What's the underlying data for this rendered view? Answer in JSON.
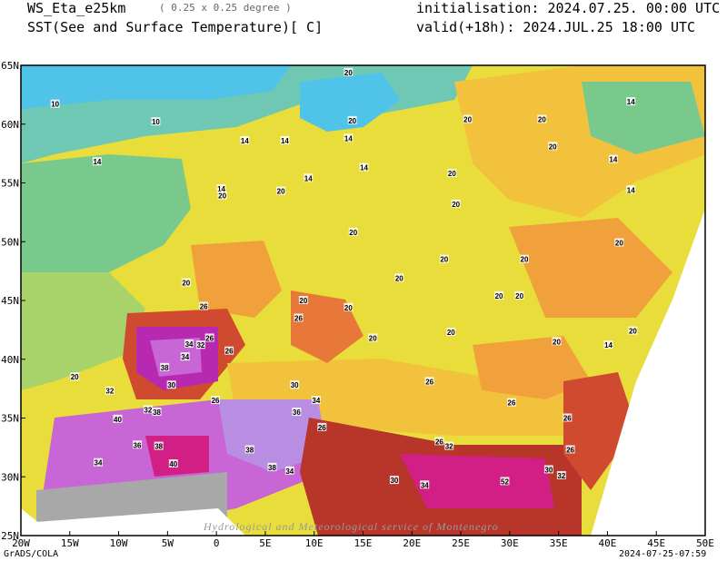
{
  "header": {
    "model": "WS_Eta_e25km",
    "resolution": "( 0.25 x 0.25 degree )",
    "field": "SST(See and Surface Temperature)[ C]",
    "init": "initialisation: 2024.07.25. 00:00 UTC",
    "valid": "valid(+18h): 2024.JUL.25 18:00 UTC"
  },
  "axes": {
    "x_ticks": [
      "20W",
      "15W",
      "10W",
      "5W",
      "0",
      "5E",
      "10E",
      "15E",
      "20E",
      "25E",
      "30E",
      "35E",
      "40E",
      "45E",
      "50E"
    ],
    "y_ticks": [
      "65N",
      "60N",
      "55N",
      "50N",
      "45N",
      "40N",
      "35N",
      "30N",
      "25N"
    ]
  },
  "contour_labels": [
    {
      "text": "10",
      "lon": -16.5,
      "lat": 61.7
    },
    {
      "text": "10",
      "lon": -6.2,
      "lat": 60.2
    },
    {
      "text": "20",
      "lon": 13.5,
      "lat": 64.4
    },
    {
      "text": "20",
      "lon": 13.9,
      "lat": 60.3
    },
    {
      "text": "20",
      "lon": 25.7,
      "lat": 60.4
    },
    {
      "text": "20",
      "lon": 33.3,
      "lat": 60.4
    },
    {
      "text": "14",
      "lon": 42.4,
      "lat": 61.9
    },
    {
      "text": "14",
      "lon": -12.2,
      "lat": 56.8
    },
    {
      "text": "14",
      "lon": 2.9,
      "lat": 58.6
    },
    {
      "text": "14",
      "lon": 7.0,
      "lat": 58.6
    },
    {
      "text": "14",
      "lon": 13.5,
      "lat": 58.8
    },
    {
      "text": "14",
      "lon": 15.1,
      "lat": 56.3
    },
    {
      "text": "14",
      "lon": 9.4,
      "lat": 55.4
    },
    {
      "text": "14",
      "lon": 0.5,
      "lat": 54.5
    },
    {
      "text": "14",
      "lon": 40.6,
      "lat": 57.0
    },
    {
      "text": "14",
      "lon": 42.4,
      "lat": 54.4
    },
    {
      "text": "14",
      "lon": 40.1,
      "lat": 41.2
    },
    {
      "text": "20",
      "lon": 24.1,
      "lat": 55.8
    },
    {
      "text": "20",
      "lon": 34.4,
      "lat": 58.1
    },
    {
      "text": "20",
      "lon": 24.5,
      "lat": 53.2
    },
    {
      "text": "20",
      "lon": 0.6,
      "lat": 53.9
    },
    {
      "text": "20",
      "lon": 6.6,
      "lat": 54.3
    },
    {
      "text": "20",
      "lon": 14.0,
      "lat": 50.8
    },
    {
      "text": "20",
      "lon": 18.7,
      "lat": 46.9
    },
    {
      "text": "20",
      "lon": 23.3,
      "lat": 48.5
    },
    {
      "text": "20",
      "lon": 31.5,
      "lat": 48.5
    },
    {
      "text": "20",
      "lon": 41.2,
      "lat": 49.9
    },
    {
      "text": "20",
      "lon": -3.1,
      "lat": 46.5
    },
    {
      "text": "20",
      "lon": 8.9,
      "lat": 45.0
    },
    {
      "text": "20",
      "lon": 13.5,
      "lat": 44.4
    },
    {
      "text": "20",
      "lon": 28.9,
      "lat": 45.4
    },
    {
      "text": "20",
      "lon": 31.0,
      "lat": 45.4
    },
    {
      "text": "20",
      "lon": 16.0,
      "lat": 41.8
    },
    {
      "text": "20",
      "lon": 24.0,
      "lat": 42.3
    },
    {
      "text": "20",
      "lon": 34.8,
      "lat": 41.5
    },
    {
      "text": "20",
      "lon": 42.6,
      "lat": 42.4
    },
    {
      "text": "20",
      "lon": -14.5,
      "lat": 38.5
    },
    {
      "text": "26",
      "lon": -1.3,
      "lat": 44.5
    },
    {
      "text": "26",
      "lon": -0.7,
      "lat": 41.8
    },
    {
      "text": "26",
      "lon": 1.3,
      "lat": 40.7
    },
    {
      "text": "26",
      "lon": 8.4,
      "lat": 43.5
    },
    {
      "text": "26",
      "lon": 21.8,
      "lat": 38.1
    },
    {
      "text": "26",
      "lon": 30.2,
      "lat": 36.3
    },
    {
      "text": "26",
      "lon": 35.9,
      "lat": 35.0
    },
    {
      "text": "26",
      "lon": 10.8,
      "lat": 34.2
    },
    {
      "text": "26",
      "lon": -0.1,
      "lat": 36.5
    },
    {
      "text": "26",
      "lon": 22.8,
      "lat": 33.0
    },
    {
      "text": "26",
      "lon": 36.2,
      "lat": 32.3
    },
    {
      "text": "32",
      "lon": -1.6,
      "lat": 41.2
    },
    {
      "text": "32",
      "lon": -10.9,
      "lat": 37.3
    },
    {
      "text": "32",
      "lon": -7.0,
      "lat": 35.7
    },
    {
      "text": "32",
      "lon": 23.8,
      "lat": 32.6
    },
    {
      "text": "32",
      "lon": 35.3,
      "lat": 30.1
    },
    {
      "text": "34",
      "lon": -2.8,
      "lat": 41.3
    },
    {
      "text": "34",
      "lon": -3.2,
      "lat": 40.2
    },
    {
      "text": "34",
      "lon": 7.5,
      "lat": 30.5
    },
    {
      "text": "34",
      "lon": 10.2,
      "lat": 36.5
    },
    {
      "text": "34",
      "lon": -12.1,
      "lat": 31.2
    },
    {
      "text": "34",
      "lon": 21.3,
      "lat": 29.3
    },
    {
      "text": "38",
      "lon": -5.3,
      "lat": 39.3
    },
    {
      "text": "38",
      "lon": -6.1,
      "lat": 35.5
    },
    {
      "text": "38",
      "lon": -5.9,
      "lat": 32.6
    },
    {
      "text": "38",
      "lon": 3.4,
      "lat": 32.3
    },
    {
      "text": "38",
      "lon": 5.7,
      "lat": 30.8
    },
    {
      "text": "36",
      "lon": -8.1,
      "lat": 32.7
    },
    {
      "text": "36",
      "lon": 8.2,
      "lat": 35.5
    },
    {
      "text": "30",
      "lon": -4.6,
      "lat": 37.8
    },
    {
      "text": "30",
      "lon": 8.0,
      "lat": 37.8
    },
    {
      "text": "30",
      "lon": 18.2,
      "lat": 29.7
    },
    {
      "text": "30",
      "lon": 34.0,
      "lat": 30.6
    },
    {
      "text": "40",
      "lon": -10.1,
      "lat": 34.9
    },
    {
      "text": "40",
      "lon": -4.4,
      "lat": 31.1
    },
    {
      "text": "52",
      "lon": 29.5,
      "lat": 29.6
    }
  ],
  "watermark": "Hydrological and Meteorological service of Montenegro",
  "footer": {
    "left": "GrADS/COLA",
    "right": "2024-07-25-07:59"
  },
  "colors": {
    "t10": "#4fc3e8",
    "t12": "#5ec8d2",
    "t14": "#6ec8b4",
    "t16": "#79c98c",
    "t18": "#a7d36a",
    "t20": "#cfdc46",
    "t22": "#e8dd3a",
    "t24": "#f3c23c",
    "t26": "#f0a13c",
    "t28": "#e7783a",
    "t30": "#cf4a2e",
    "t32": "#b8352a",
    "t34": "#d11f86",
    "t36": "#b729b0",
    "t38": "#c766d4",
    "t40": "#b98ee2",
    "land_masked": "#a8a8a8",
    "outside": "#ffffff"
  }
}
